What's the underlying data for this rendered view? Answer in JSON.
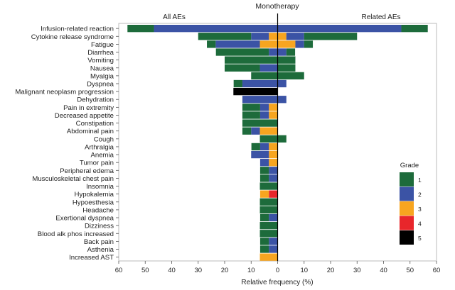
{
  "chart_data": {
    "type": "bar",
    "orientation": "horizontal-butterfly-stacked",
    "title": "Monotherapy",
    "left_label": "All AEs",
    "right_label": "Related AEs",
    "xlabel": "Relative frequency (%)",
    "xlim": [
      -60,
      60
    ],
    "xticks": [
      "60",
      "50",
      "40",
      "30",
      "20",
      "10",
      "0",
      "10",
      "20",
      "30",
      "40",
      "50",
      "60"
    ],
    "legend": {
      "title": "Grade",
      "placement": "bottom-right",
      "entries": [
        "1",
        "2",
        "3",
        "4",
        "5"
      ]
    },
    "grade_colors": [
      "#1d6b3b",
      "#3b53a5",
      "#f7a520",
      "#e8262b",
      "#000000"
    ],
    "categories": [
      "Infusion-related reaction",
      "Cytokine release syndrome",
      "Fatigue",
      "Diarrhea",
      "Vomiting",
      "Nausea",
      "Myalgia",
      "Dyspnea",
      "Malignant neoplasm progression",
      "Dehydration",
      "Pain in extremity",
      "Decreased appetite",
      "Constipation",
      "Abdominal pain",
      "Cough",
      "Arthralgia",
      "Anemia",
      "Tumor pain",
      "Peripheral edema",
      "Musculoskeletal chest pain",
      "Insomnia",
      "Hypokalemia",
      "Hypoesthesia",
      "Headache",
      "Exertional dyspnea",
      "Dizziness",
      "Blood alk phos increased",
      "Back pain",
      "Asthenia",
      "Increased AST"
    ],
    "series_note": "each entry is [grade1, grade2, grade3, grade4, grade5] in %",
    "all_aes": [
      [
        10,
        46.7,
        0,
        0,
        0
      ],
      [
        20,
        6.7,
        3.3,
        0,
        0
      ],
      [
        3.3,
        16.7,
        6.7,
        0,
        0
      ],
      [
        20,
        3.3,
        0,
        0,
        0
      ],
      [
        20,
        0,
        0,
        0,
        0
      ],
      [
        13.3,
        6.7,
        0,
        0,
        0
      ],
      [
        10,
        0,
        0,
        0,
        0
      ],
      [
        3.3,
        13.3,
        0,
        0,
        0
      ],
      [
        0,
        0,
        0,
        0,
        16.7
      ],
      [
        0,
        13.3,
        0,
        0,
        0
      ],
      [
        6.7,
        3.3,
        3.3,
        0,
        0
      ],
      [
        6.7,
        3.3,
        3.3,
        0,
        0
      ],
      [
        13.3,
        0,
        0,
        0,
        0
      ],
      [
        3.3,
        3.3,
        6.7,
        0,
        0
      ],
      [
        6.7,
        0,
        0,
        0,
        0
      ],
      [
        3.3,
        3.3,
        3.3,
        0,
        0
      ],
      [
        0,
        6.7,
        3.3,
        0,
        0
      ],
      [
        0,
        3.3,
        3.3,
        0,
        0
      ],
      [
        3.3,
        3.3,
        0,
        0,
        0
      ],
      [
        3.3,
        3.3,
        0,
        0,
        0
      ],
      [
        6.7,
        0,
        0,
        0,
        0
      ],
      [
        0,
        0,
        3.3,
        3.3,
        0
      ],
      [
        6.7,
        0,
        0,
        0,
        0
      ],
      [
        6.7,
        0,
        0,
        0,
        0
      ],
      [
        3.3,
        3.3,
        0,
        0,
        0
      ],
      [
        6.7,
        0,
        0,
        0,
        0
      ],
      [
        6.7,
        0,
        0,
        0,
        0
      ],
      [
        3.3,
        3.3,
        0,
        0,
        0
      ],
      [
        3.3,
        3.3,
        0,
        0,
        0
      ],
      [
        0,
        0,
        6.7,
        0,
        0
      ]
    ],
    "related_aes": [
      [
        10,
        46.7,
        0,
        0,
        0
      ],
      [
        20,
        6.7,
        3.3,
        0,
        0
      ],
      [
        3.3,
        3.3,
        6.7,
        0,
        0
      ],
      [
        3.3,
        3.3,
        0,
        0,
        0
      ],
      [
        6.7,
        0,
        0,
        0,
        0
      ],
      [
        6.7,
        0,
        0,
        0,
        0
      ],
      [
        10,
        0,
        0,
        0,
        0
      ],
      [
        0,
        3.3,
        0,
        0,
        0
      ],
      [
        0,
        0,
        0,
        0,
        0
      ],
      [
        0,
        3.3,
        0,
        0,
        0
      ],
      [
        0,
        0,
        0,
        0,
        0
      ],
      [
        0,
        0,
        0,
        0,
        0
      ],
      [
        0,
        0,
        0,
        0,
        0
      ],
      [
        0,
        0,
        0,
        0,
        0
      ],
      [
        3.3,
        0,
        0,
        0,
        0
      ],
      [
        0,
        0,
        0,
        0,
        0
      ],
      [
        0,
        0,
        0,
        0,
        0
      ],
      [
        0,
        0,
        0,
        0,
        0
      ],
      [
        0,
        0,
        0,
        0,
        0
      ],
      [
        0,
        0,
        0,
        0,
        0
      ],
      [
        0,
        0,
        0,
        0,
        0
      ],
      [
        0,
        0,
        0,
        0,
        0
      ],
      [
        0,
        0,
        0,
        0,
        0
      ],
      [
        0,
        0,
        0,
        0,
        0
      ],
      [
        0,
        0,
        0,
        0,
        0
      ],
      [
        0,
        0,
        0,
        0,
        0
      ],
      [
        0,
        0,
        0,
        0,
        0
      ],
      [
        0,
        0,
        0,
        0,
        0
      ],
      [
        0,
        0,
        0,
        0,
        0
      ],
      [
        0,
        0,
        0,
        0,
        0
      ]
    ]
  }
}
